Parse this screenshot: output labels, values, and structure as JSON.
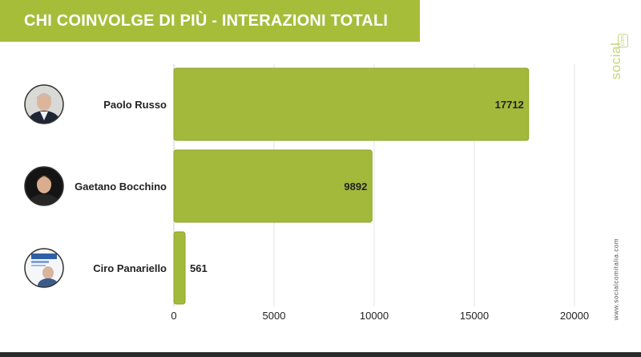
{
  "title": "CHI COINVOLGE DI PIÙ - INTERAZIONI TOTALI",
  "brand": {
    "word": "social",
    "suffix": "com"
  },
  "website": "www.socialcomitalia.com",
  "colors": {
    "accent": "#a6bd3a",
    "bar": "#a3b93b",
    "bar_border": "#8fa42d",
    "grid": "#e3e3e3",
    "text": "#222222"
  },
  "chart_data": {
    "type": "bar",
    "orientation": "horizontal",
    "categories": [
      "Paolo Russo",
      "Gaetano Bocchino",
      "Ciro Panariello"
    ],
    "values": [
      17712,
      9892,
      561
    ],
    "xlim": [
      0,
      20000
    ],
    "xticks": [
      0,
      5000,
      10000,
      15000,
      20000
    ],
    "grid": true,
    "data_labels": true
  },
  "avatars": [
    "person-avatar-icon",
    "person-avatar-icon",
    "campaign-poster-avatar-icon"
  ]
}
